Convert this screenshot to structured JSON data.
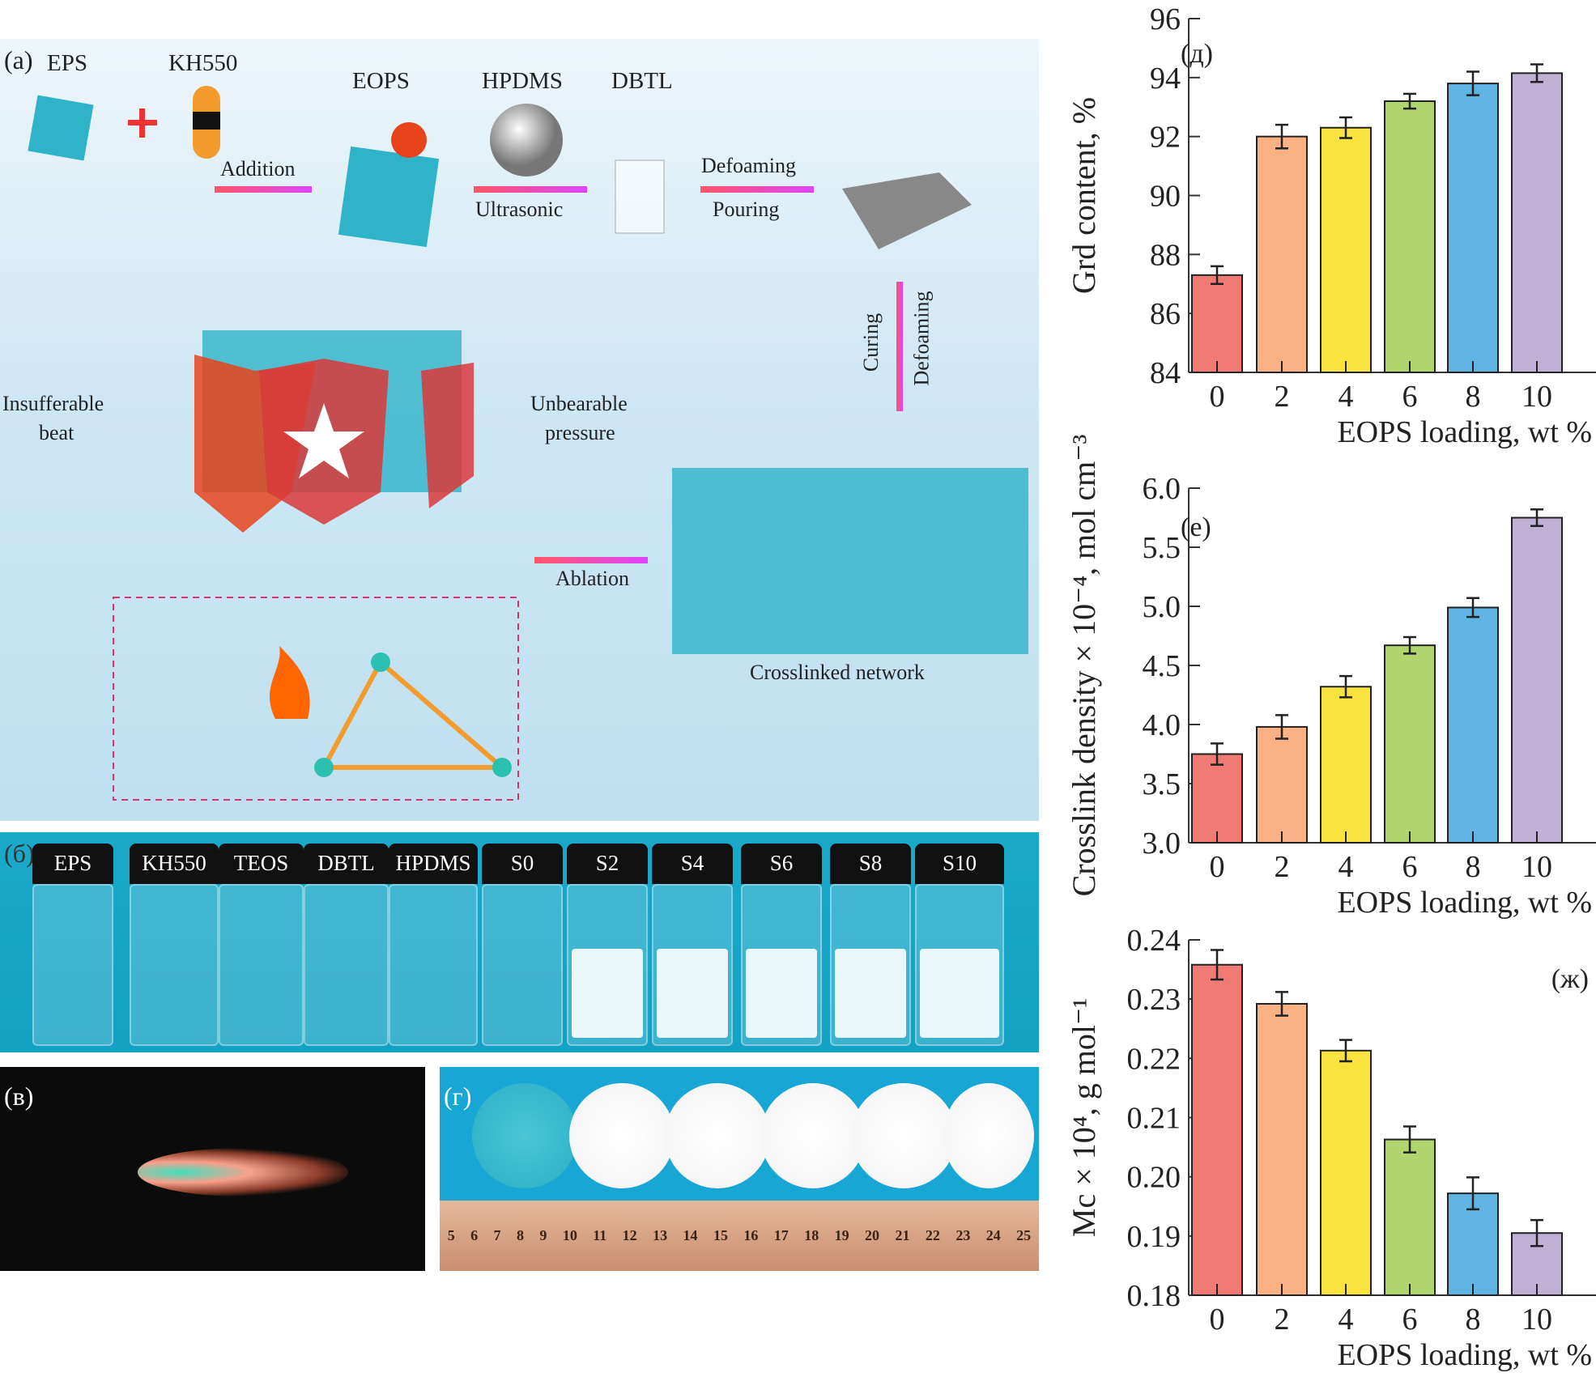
{
  "panel_a": {
    "label": "(a)",
    "eps": "EPS",
    "kh550": "KH550",
    "eops": "EOPS",
    "hpdms": "HPDMS",
    "dbtl": "DBTL",
    "addition": "Addition",
    "ultrasonic": "Ultrasonic",
    "defoaming": "Defoaming",
    "pouring": "Pouring",
    "curing": "Curing",
    "defoaming2": "Defoaming",
    "insufferable": "Insufferable",
    "beat": "beat",
    "unbearable": "Unbearable",
    "pressure": "pressure",
    "ablation": "Ablation",
    "crosslinked": "Crosslinked network"
  },
  "panel_b": {
    "label": "(б)",
    "vials": [
      "EPS",
      "KH550",
      "TEOS",
      "DBTL",
      "HPDMS",
      "S0",
      "S2",
      "S4",
      "S6",
      "S8",
      "S10"
    ]
  },
  "panel_v": {
    "label": "(в)"
  },
  "panel_g": {
    "label": "(г)",
    "ruler": [
      "5",
      "6",
      "7",
      "8",
      "9",
      "10",
      "11",
      "12",
      "13",
      "14",
      "15",
      "16",
      "17",
      "18",
      "19",
      "20",
      "21",
      "22",
      "23",
      "24",
      "25"
    ]
  },
  "colors": [
    "#f07b74",
    "#f9b185",
    "#fbe33f",
    "#b0d56f",
    "#5fb4e2",
    "#c0b0d4"
  ],
  "chart_data": [
    {
      "type": "bar",
      "panel": "(д)",
      "categories": [
        "0",
        "2",
        "4",
        "6",
        "8",
        "10"
      ],
      "values": [
        87.3,
        92.0,
        92.3,
        93.2,
        93.8,
        94.15
      ],
      "errors": [
        0.3,
        0.4,
        0.35,
        0.25,
        0.4,
        0.3
      ],
      "ylabel": "Grd content, %",
      "xlabel": "EOPS loading, wt %",
      "ylim": [
        84,
        96
      ],
      "yticks": [
        "84",
        "86",
        "88",
        "90",
        "92",
        "94",
        "96"
      ]
    },
    {
      "type": "bar",
      "panel": "(e)",
      "categories": [
        "0",
        "2",
        "4",
        "6",
        "8",
        "10"
      ],
      "values": [
        3.75,
        3.98,
        4.32,
        4.67,
        4.99,
        5.75
      ],
      "errors": [
        0.09,
        0.1,
        0.09,
        0.07,
        0.08,
        0.07
      ],
      "ylabel": "Crosslink density × 10⁻⁴, mol cm⁻³",
      "xlabel": "EOPS loading, wt %",
      "ylim": [
        3.0,
        6.0
      ],
      "yticks": [
        "3.0",
        "3.5",
        "4.0",
        "4.5",
        "5.0",
        "5.5",
        "6.0"
      ]
    },
    {
      "type": "bar",
      "panel": "(ж)",
      "categories": [
        "0",
        "2",
        "4",
        "6",
        "8",
        "10"
      ],
      "values": [
        0.2358,
        0.2292,
        0.2213,
        0.2063,
        0.1972,
        0.1905
      ],
      "errors": [
        0.0025,
        0.002,
        0.0018,
        0.0022,
        0.0027,
        0.0022
      ],
      "ylabel": "Mc × 10⁴, g mol⁻¹",
      "xlabel": "EOPS loading, wt %",
      "ylim": [
        0.18,
        0.24
      ],
      "yticks": [
        "0.18",
        "0.19",
        "0.20",
        "0.21",
        "0.22",
        "0.23",
        "0.24"
      ]
    }
  ]
}
